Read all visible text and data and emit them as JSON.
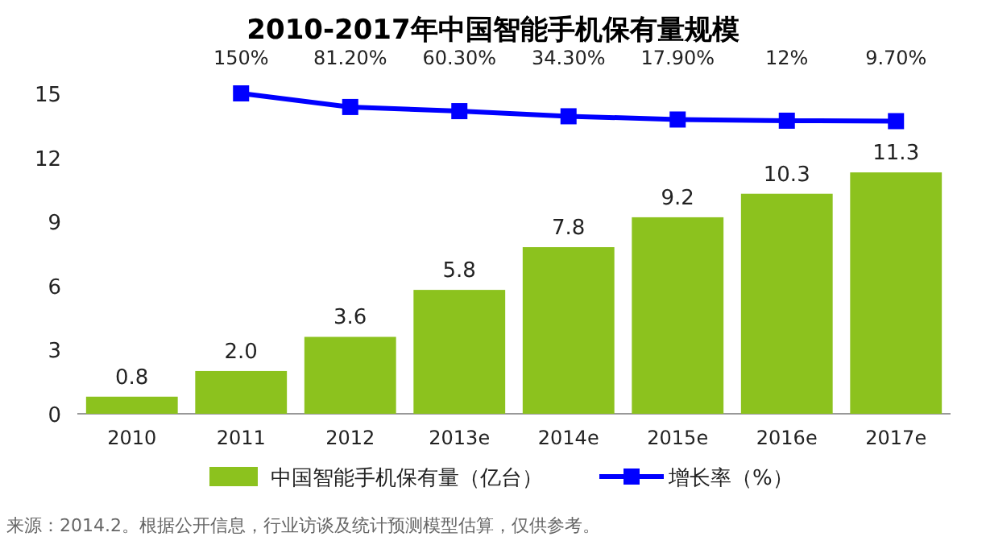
{
  "chart_data": {
    "type": "bar",
    "title": "2010-2017年中国智能手机保有量规模",
    "categories": [
      "2010",
      "2011",
      "2012",
      "2013e",
      "2014e",
      "2015e",
      "2016e",
      "2017e"
    ],
    "series": [
      {
        "name": "中国智能手机保有量（亿台）",
        "color": "#8cc21e",
        "values": [
          0.8,
          2.0,
          3.6,
          5.8,
          7.8,
          9.2,
          10.3,
          11.3
        ],
        "value_labels": [
          "0.8",
          "2.0",
          "3.6",
          "5.8",
          "7.8",
          "9.2",
          "10.3",
          "11.3"
        ]
      },
      {
        "name": "增长率（%）",
        "type": "line",
        "axis": "y2",
        "color": "#0000ff",
        "marker": "square",
        "values": [
          null,
          150,
          81.2,
          60.3,
          34.3,
          17.9,
          12,
          9.7
        ],
        "value_labels": [
          null,
          "150%",
          "81.20%",
          "60.30%",
          "34.30%",
          "17.90%",
          "12%",
          "9.70%"
        ]
      }
    ],
    "ylim": [
      0,
      15
    ],
    "yticks": [
      0,
      3,
      6,
      9,
      12,
      15
    ],
    "y2lim": [
      -1469,
      150
    ],
    "legend": "bottom",
    "annotations": [
      "来源：2014.2。根据公开信息，行业访谈及统计预测模型估算，仅供参考。"
    ]
  }
}
